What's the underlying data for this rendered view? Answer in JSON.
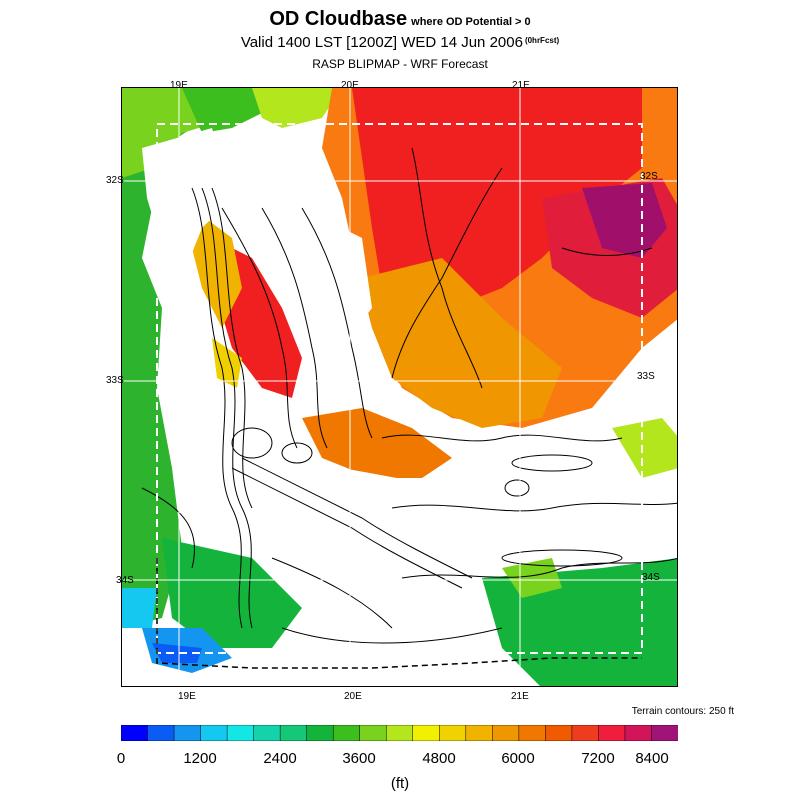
{
  "header": {
    "title": "OD Cloudbase",
    "title_condition": "where OD Potential > 0",
    "valid_line": "Valid 1400 LST [1200Z] WED 14 Jun 2006",
    "forecast_tag": "(0hrFcst)",
    "subtitle": "RASP BLIPMAP - WRF Forecast"
  },
  "map": {
    "lon_labels_top": [
      "19E",
      "20E",
      "21E"
    ],
    "lon_labels_bottom": [
      "19E",
      "20E",
      "21E"
    ],
    "lat_labels_left": [
      "32S",
      "33S",
      "34S"
    ],
    "lat_labels_right": [
      "32S",
      "33S",
      "34S"
    ],
    "terrain_note": "Terrain contours: 250 ft",
    "colors": {
      "red": "#f02020",
      "orange": "#f87a10",
      "dark_orange": "#e04010",
      "purple": "#a0106a",
      "green": "#2db32d",
      "light_green": "#66cc22",
      "yellow": "#f0d000",
      "blue": "#1030ff",
      "cyan": "#10b0e0"
    }
  },
  "colorbar": {
    "tick_labels": [
      "0",
      "1200",
      "2400",
      "3600",
      "4800",
      "6000",
      "7200",
      "8400"
    ],
    "unit": "(ft)",
    "colors": [
      "#0000ff",
      "#0a5cf5",
      "#1496f0",
      "#14c8f0",
      "#14e6e6",
      "#14d2aa",
      "#14c878",
      "#14b43c",
      "#3cbe1e",
      "#78d21e",
      "#b4e61e",
      "#f0f000",
      "#f0d200",
      "#f0b400",
      "#f09600",
      "#f07800",
      "#f05a00",
      "#f03c1e",
      "#f01e3c",
      "#d2145a",
      "#a01478"
    ]
  }
}
